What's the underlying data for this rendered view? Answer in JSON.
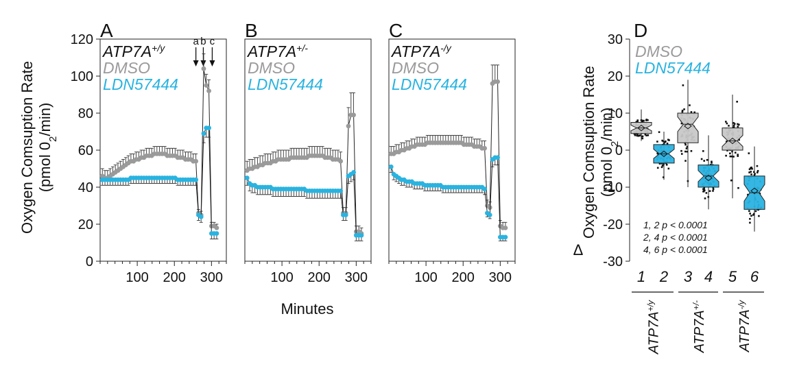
{
  "figure": {
    "ylabel_oc_line1": "Oxygen Comsuption Rate",
    "ylabel_oc_line2": "(pmol 0",
    "ylabel_oc_sub": "2",
    "ylabel_oc_end": "/min)",
    "xlabel": "Minutes",
    "delta_symbol": "Δ",
    "colors": {
      "dmso": "#9a9a9a",
      "ldn": "#29b3e0",
      "genotype": "#111111",
      "dmso_box": "#c8c8c8",
      "ldn_box": "#2ab2e2"
    }
  },
  "chart_data": [
    {
      "type": "line",
      "panel_letter": "A",
      "genotype_base": "ATP7A",
      "genotype_sup": "+/y",
      "legend": [
        "DMSO",
        "LDN57444"
      ],
      "injection_labels": [
        "a",
        "b",
        "c"
      ],
      "injection_minutes": [
        258,
        278,
        302
      ],
      "xlim": [
        0,
        340
      ],
      "ylim": [
        0,
        120
      ],
      "x_ticks": [
        100,
        200,
        300
      ],
      "y_ticks": [
        0,
        20,
        40,
        60,
        80,
        100,
        120
      ],
      "series": [
        {
          "name": "DMSO",
          "x": [
            6,
            13,
            20,
            27,
            34,
            41,
            48,
            55,
            62,
            69,
            76,
            83,
            90,
            97,
            104,
            111,
            118,
            125,
            132,
            139,
            146,
            153,
            160,
            167,
            174,
            181,
            188,
            195,
            202,
            209,
            216,
            223,
            230,
            237,
            244,
            251,
            258,
            265,
            272,
            279,
            286,
            293,
            300,
            307,
            314
          ],
          "y": [
            46,
            45,
            45,
            46,
            47,
            48,
            49,
            50,
            51,
            52,
            53,
            54,
            54,
            55,
            55,
            56,
            56,
            57,
            57,
            57,
            58,
            58,
            58,
            58,
            58,
            57,
            57,
            57,
            57,
            56,
            56,
            56,
            55,
            55,
            55,
            54,
            54,
            26,
            25,
            104,
            95,
            92,
            19,
            19,
            18
          ],
          "err": [
            4,
            4,
            4,
            4,
            4,
            4,
            4,
            4,
            4,
            4,
            4,
            4,
            4,
            4,
            4,
            4,
            4,
            4,
            4,
            4,
            4,
            4,
            4,
            4,
            4,
            4,
            4,
            4,
            4,
            4,
            4,
            4,
            4,
            4,
            4,
            4,
            4,
            2,
            2,
            8,
            6,
            6,
            2,
            2,
            2
          ]
        },
        {
          "name": "LDN57444",
          "x": [
            6,
            13,
            20,
            27,
            34,
            41,
            48,
            55,
            62,
            69,
            76,
            83,
            90,
            97,
            104,
            111,
            118,
            125,
            132,
            139,
            146,
            153,
            160,
            167,
            174,
            181,
            188,
            195,
            202,
            209,
            216,
            223,
            230,
            237,
            244,
            251,
            258,
            265,
            272,
            279,
            286,
            293,
            300,
            307,
            314
          ],
          "y": [
            44,
            44,
            44,
            44,
            44,
            44,
            44,
            44,
            44,
            44,
            44,
            45,
            45,
            45,
            45,
            45,
            45,
            45,
            45,
            45,
            45,
            45,
            45,
            45,
            45,
            45,
            45,
            45,
            45,
            44,
            44,
            44,
            44,
            44,
            44,
            44,
            44,
            25,
            24,
            69,
            72,
            72,
            15,
            15,
            15
          ],
          "err": [
            3,
            3,
            3,
            3,
            3,
            3,
            3,
            3,
            3,
            3,
            3,
            3,
            3,
            3,
            3,
            3,
            3,
            3,
            3,
            3,
            3,
            3,
            3,
            3,
            3,
            3,
            3,
            3,
            3,
            3,
            3,
            3,
            3,
            3,
            3,
            3,
            3,
            3,
            3,
            5,
            5,
            5,
            3,
            3,
            3
          ]
        }
      ]
    },
    {
      "type": "line",
      "panel_letter": "B",
      "genotype_base": "ATP7A",
      "genotype_sup": "+/-",
      "legend": [
        "DMSO",
        "LDN57444"
      ],
      "xlim": [
        0,
        340
      ],
      "ylim": [
        0,
        120
      ],
      "x_ticks": [
        100,
        200,
        300
      ],
      "series": [
        {
          "name": "DMSO",
          "x": [
            6,
            13,
            20,
            27,
            34,
            41,
            48,
            55,
            62,
            69,
            76,
            83,
            90,
            97,
            104,
            111,
            118,
            125,
            132,
            139,
            146,
            153,
            160,
            167,
            174,
            181,
            188,
            195,
            202,
            209,
            216,
            223,
            230,
            237,
            244,
            251,
            258,
            265,
            272,
            279,
            286,
            293,
            300,
            307,
            314
          ],
          "y": [
            49,
            50,
            50,
            51,
            51,
            52,
            52,
            53,
            53,
            53,
            54,
            54,
            55,
            55,
            55,
            55,
            55,
            56,
            56,
            56,
            56,
            56,
            56,
            56,
            57,
            57,
            57,
            57,
            57,
            57,
            56,
            56,
            56,
            55,
            55,
            55,
            54,
            26,
            26,
            73,
            79,
            79,
            16,
            16,
            15
          ],
          "err": [
            5,
            5,
            5,
            5,
            5,
            5,
            5,
            5,
            5,
            5,
            5,
            5,
            5,
            5,
            5,
            5,
            5,
            5,
            5,
            5,
            5,
            5,
            5,
            5,
            5,
            5,
            5,
            5,
            5,
            5,
            5,
            5,
            5,
            5,
            5,
            5,
            5,
            3,
            3,
            10,
            12,
            12,
            3,
            3,
            3
          ]
        },
        {
          "name": "LDN57444",
          "x": [
            6,
            13,
            20,
            27,
            34,
            41,
            48,
            55,
            62,
            69,
            76,
            83,
            90,
            97,
            104,
            111,
            118,
            125,
            132,
            139,
            146,
            153,
            160,
            167,
            174,
            181,
            188,
            195,
            202,
            209,
            216,
            223,
            230,
            237,
            244,
            251,
            258,
            265,
            272,
            279,
            286,
            293,
            300,
            307,
            314
          ],
          "y": [
            45,
            42,
            41,
            41,
            40,
            40,
            40,
            40,
            40,
            40,
            39,
            39,
            39,
            39,
            39,
            39,
            39,
            39,
            39,
            39,
            39,
            39,
            39,
            38,
            38,
            38,
            38,
            38,
            38,
            38,
            38,
            38,
            38,
            38,
            38,
            38,
            38,
            25,
            25,
            46,
            47,
            48,
            14,
            14,
            14
          ],
          "err": [
            4,
            4,
            4,
            4,
            4,
            4,
            4,
            4,
            4,
            4,
            4,
            4,
            4,
            4,
            4,
            4,
            4,
            4,
            4,
            4,
            4,
            4,
            4,
            4,
            4,
            4,
            4,
            4,
            4,
            4,
            4,
            4,
            4,
            4,
            4,
            4,
            4,
            3,
            3,
            4,
            4,
            4,
            3,
            3,
            3
          ]
        }
      ]
    },
    {
      "type": "line",
      "panel_letter": "C",
      "genotype_base": "ATP7A",
      "genotype_sup": "-/y",
      "legend": [
        "DMSO",
        "LDN57444"
      ],
      "xlim": [
        0,
        340
      ],
      "ylim": [
        0,
        120
      ],
      "x_ticks": [
        100,
        200,
        300
      ],
      "series": [
        {
          "name": "DMSO",
          "x": [
            6,
            13,
            20,
            27,
            34,
            41,
            48,
            55,
            62,
            69,
            76,
            83,
            90,
            97,
            104,
            111,
            118,
            125,
            132,
            139,
            146,
            153,
            160,
            167,
            174,
            181,
            188,
            195,
            202,
            209,
            216,
            223,
            230,
            237,
            244,
            251,
            258,
            265,
            272,
            279,
            286,
            293,
            300,
            307,
            314
          ],
          "y": [
            58,
            58,
            59,
            59,
            60,
            60,
            61,
            61,
            62,
            62,
            63,
            63,
            63,
            63,
            64,
            64,
            64,
            64,
            64,
            64,
            64,
            64,
            64,
            64,
            64,
            64,
            64,
            64,
            63,
            63,
            63,
            63,
            62,
            62,
            62,
            61,
            61,
            30,
            29,
            96,
            97,
            97,
            19,
            18,
            18
          ],
          "err": [
            4,
            4,
            4,
            4,
            4,
            4,
            4,
            4,
            4,
            4,
            4,
            4,
            4,
            4,
            4,
            4,
            4,
            4,
            4,
            4,
            4,
            4,
            4,
            4,
            4,
            4,
            4,
            4,
            4,
            4,
            4,
            4,
            4,
            4,
            4,
            4,
            4,
            3,
            3,
            10,
            9,
            9,
            3,
            3,
            3
          ]
        },
        {
          "name": "LDN57444",
          "x": [
            6,
            13,
            20,
            27,
            34,
            41,
            48,
            55,
            62,
            69,
            76,
            83,
            90,
            97,
            104,
            111,
            118,
            125,
            132,
            139,
            146,
            153,
            160,
            167,
            174,
            181,
            188,
            195,
            202,
            209,
            216,
            223,
            230,
            237,
            244,
            251,
            258,
            265,
            272,
            279,
            286,
            293,
            300,
            307,
            314
          ],
          "y": [
            51,
            47,
            46,
            45,
            44,
            44,
            43,
            43,
            43,
            42,
            42,
            42,
            42,
            41,
            41,
            41,
            41,
            41,
            41,
            41,
            40,
            40,
            40,
            40,
            40,
            40,
            40,
            40,
            40,
            40,
            40,
            40,
            40,
            40,
            40,
            40,
            39,
            26,
            25,
            55,
            56,
            56,
            13,
            13,
            13
          ],
          "err": [
            3,
            3,
            3,
            3,
            3,
            3,
            3,
            3,
            3,
            3,
            3,
            3,
            3,
            3,
            3,
            3,
            3,
            3,
            3,
            3,
            3,
            3,
            3,
            3,
            3,
            3,
            3,
            3,
            3,
            3,
            3,
            3,
            3,
            3,
            3,
            3,
            3,
            2,
            2,
            4,
            4,
            4,
            2,
            2,
            2
          ]
        }
      ]
    },
    {
      "type": "box",
      "panel_letter": "D",
      "legend": [
        "DMSO",
        "LDN57444"
      ],
      "ylim": [
        -30,
        30
      ],
      "y_ticks": [
        -30,
        -20,
        -10,
        0,
        10,
        20,
        30
      ],
      "categories": [
        "1",
        "2",
        "3",
        "4",
        "5",
        "6"
      ],
      "groups": [
        {
          "label_base": "ATP7A",
          "label_sup": "+/y",
          "categories": [
            "1",
            "2"
          ]
        },
        {
          "label_base": "ATP7A",
          "label_sup": "+/-",
          "categories": [
            "3",
            "4"
          ]
        },
        {
          "label_base": "ATP7A",
          "label_sup": "-/y",
          "categories": [
            "5",
            "6"
          ]
        }
      ],
      "boxes": [
        {
          "category": "1",
          "treatment": "DMSO",
          "q1": 4.5,
          "median": 6,
          "q3": 7.5,
          "min": 2.5,
          "max": 11,
          "mean": 6
        },
        {
          "category": "2",
          "treatment": "LDN57444",
          "q1": -3.5,
          "median": -1,
          "q3": 1.5,
          "min": -8,
          "max": 5,
          "mean": -1
        },
        {
          "category": "3",
          "treatment": "DMSO",
          "q1": 2,
          "median": 7,
          "q3": 10,
          "min": -10,
          "max": 19,
          "mean": 6.5
        },
        {
          "category": "4",
          "treatment": "LDN57444",
          "q1": -10,
          "median": -7,
          "q3": -4,
          "min": -16,
          "max": 4,
          "mean": -7.5
        },
        {
          "category": "5",
          "treatment": "DMSO",
          "q1": 0,
          "median": 2.5,
          "q3": 6,
          "min": -13,
          "max": 15,
          "mean": 2.5
        },
        {
          "category": "6",
          "treatment": "LDN57444",
          "q1": -16,
          "median": -11.5,
          "q3": -7,
          "min": -22,
          "max": 1,
          "mean": -11
        }
      ],
      "annotations": [
        "1, 2 p < 0.0001",
        "2, 4 p < 0.0001",
        "4, 6 p < 0.0001"
      ]
    }
  ]
}
